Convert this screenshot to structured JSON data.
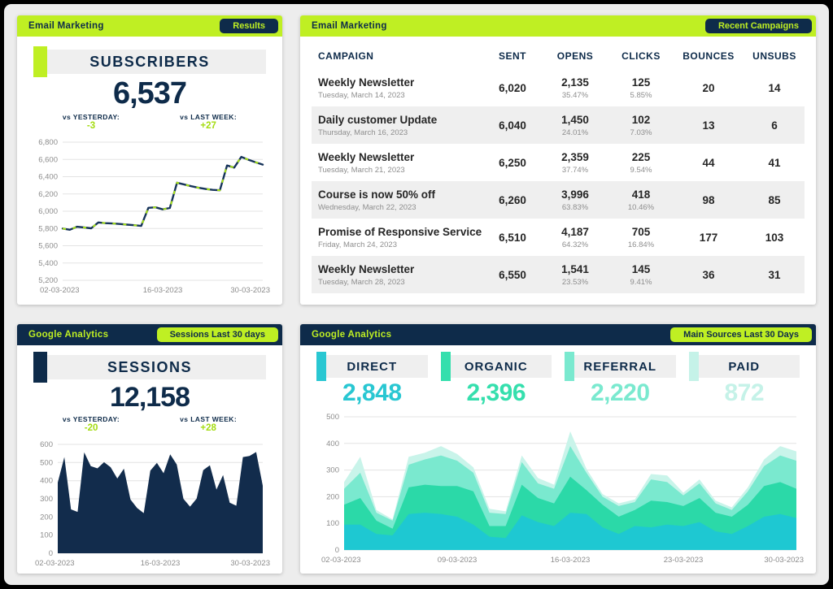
{
  "colors": {
    "lime": "#bfef23",
    "navy": "#0e2b4a",
    "page_bg": "#ededed",
    "banner_bg": "#efefef",
    "muted": "#8c8c8c",
    "compare_green": "#a4dc10"
  },
  "panels": {
    "subscribers": {
      "header": {
        "title": "Email Marketing",
        "badge": "Results"
      },
      "kpi": {
        "label": "SUBSCRIBERS",
        "value": "6,537"
      },
      "compare": {
        "yesterday_label": "vs YESTERDAY:",
        "yesterday_value": "-3",
        "last_week_label": "vs LAST WEEK:",
        "last_week_value": "+27"
      }
    },
    "campaigns": {
      "header": {
        "title": "Email Marketing",
        "badge": "Recent Campaigns"
      },
      "table": {
        "columns": [
          "CAMPAIGN",
          "SENT",
          "OPENS",
          "CLICKS",
          "BOUNCES",
          "UNSUBS"
        ],
        "rows": [
          {
            "name": "Weekly Newsletter",
            "date": "Tuesday, March 14, 2023",
            "sent": "6,020",
            "opens": "2,135",
            "opens_pct": "35.47%",
            "clicks": "125",
            "clicks_pct": "5.85%",
            "bounces": "20",
            "unsubs": "14"
          },
          {
            "name": "Daily customer Update",
            "date": "Thursday, March 16, 2023",
            "sent": "6,040",
            "opens": "1,450",
            "opens_pct": "24.01%",
            "clicks": "102",
            "clicks_pct": "7.03%",
            "bounces": "13",
            "unsubs": "6"
          },
          {
            "name": "Weekly Newsletter",
            "date": "Tuesday, March 21, 2023",
            "sent": "6,250",
            "opens": "2,359",
            "opens_pct": "37.74%",
            "clicks": "225",
            "clicks_pct": "9.54%",
            "bounces": "44",
            "unsubs": "41"
          },
          {
            "name": "Course is now 50% off",
            "date": "Wednesday, March 22, 2023",
            "sent": "6,260",
            "opens": "3,996",
            "opens_pct": "63.83%",
            "clicks": "418",
            "clicks_pct": "10.46%",
            "bounces": "98",
            "unsubs": "85"
          },
          {
            "name": "Promise of Responsive Service",
            "date": "Friday, March 24, 2023",
            "sent": "6,510",
            "opens": "4,187",
            "opens_pct": "64.32%",
            "clicks": "705",
            "clicks_pct": "16.84%",
            "bounces": "177",
            "unsubs": "103"
          },
          {
            "name": "Weekly Newsletter",
            "date": "Tuesday, March 28, 2023",
            "sent": "6,550",
            "opens": "1,541",
            "opens_pct": "23.53%",
            "clicks": "145",
            "clicks_pct": "9.41%",
            "bounces": "36",
            "unsubs": "31"
          }
        ]
      }
    },
    "sessions": {
      "header": {
        "title": "Google Analytics",
        "badge": "Sessions Last 30 days"
      },
      "kpi": {
        "label": "SESSIONS",
        "value": "12,158"
      },
      "compare": {
        "yesterday_label": "vs YESTERDAY:",
        "yesterday_value": "-20",
        "last_week_label": "vs LAST WEEK:",
        "last_week_value": "+28"
      }
    },
    "sources": {
      "header": {
        "title": "Google Analytics",
        "badge": "Main Sources Last 30 Days"
      },
      "kpis": [
        {
          "label": "DIRECT",
          "value": "2,848",
          "color": "#29c7d2"
        },
        {
          "label": "ORGANIC",
          "value": "2,396",
          "color": "#35dfad"
        },
        {
          "label": "REFERRAL",
          "value": "2,220",
          "color": "#7ae9cf"
        },
        {
          "label": "PAID",
          "value": "872",
          "color": "#c5f2e8"
        }
      ]
    }
  },
  "chart_data": [
    {
      "id": "subscribers",
      "type": "line",
      "title": "SUBSCRIBERS",
      "ylim": [
        5200,
        6800
      ],
      "ystep": 200,
      "grid": true,
      "xticks": [
        {
          "p": 0,
          "label": "02-03-2023"
        },
        {
          "p": 0.5,
          "label": "16-03-2023"
        },
        {
          "p": 1,
          "label": "30-03-2023"
        }
      ],
      "values": [
        5800,
        5785,
        5820,
        5812,
        5802,
        5870,
        5862,
        5858,
        5852,
        5845,
        5838,
        5830,
        6040,
        6045,
        6022,
        6038,
        6330,
        6310,
        6290,
        6272,
        6258,
        6248,
        6243,
        6530,
        6505,
        6630,
        6597,
        6568,
        6540
      ],
      "line_color": "#16335a",
      "dash_color": "#a9e614"
    },
    {
      "id": "sessions",
      "type": "area",
      "title": "SESSIONS",
      "ylim": [
        0,
        600
      ],
      "ystep": 100,
      "grid": true,
      "xticks": [
        {
          "p": 0,
          "label": "02-03-2023"
        },
        {
          "p": 0.5,
          "label": "16-03-2023"
        },
        {
          "p": 1,
          "label": "30-03-2023"
        }
      ],
      "values": [
        390,
        530,
        242,
        228,
        556,
        480,
        468,
        502,
        474,
        412,
        466,
        296,
        250,
        221,
        456,
        498,
        441,
        545,
        489,
        300,
        257,
        301,
        458,
        485,
        351,
        431,
        279,
        262,
        530,
        536,
        558,
        372
      ],
      "fill": "#122c4c"
    },
    {
      "id": "sources",
      "type": "stacked_area",
      "title": "Main Sources Last 30 Days",
      "ylim": [
        0,
        500
      ],
      "ystep": 100,
      "grid": true,
      "xticks": [
        {
          "p": 0,
          "label": "02-03-2023"
        },
        {
          "p": 0.25,
          "label": "09-03-2023"
        },
        {
          "p": 0.5,
          "label": "16-03-2023"
        },
        {
          "p": 0.75,
          "label": "23-03-2023"
        },
        {
          "p": 1,
          "label": "30-03-2023"
        }
      ],
      "series": [
        {
          "name": "Direct",
          "color": "#1ec8d2",
          "values": [
            95,
            95,
            60,
            55,
            135,
            140,
            135,
            125,
            95,
            50,
            45,
            130,
            105,
            90,
            140,
            135,
            85,
            60,
            90,
            85,
            95,
            90,
            105,
            70,
            60,
            90,
            125,
            135,
            120
          ]
        },
        {
          "name": "Organic",
          "color": "#2bd9a8",
          "values": [
            75,
            100,
            50,
            25,
            100,
            105,
            105,
            115,
            125,
            40,
            45,
            115,
            90,
            85,
            135,
            90,
            85,
            65,
            60,
            100,
            85,
            75,
            90,
            70,
            65,
            80,
            115,
            120,
            110
          ]
        },
        {
          "name": "Referral",
          "color": "#7ae9cf",
          "values": [
            60,
            95,
            30,
            30,
            85,
            95,
            115,
            95,
            70,
            50,
            45,
            85,
            55,
            55,
            115,
            65,
            30,
            40,
            30,
            80,
            75,
            40,
            55,
            35,
            25,
            50,
            75,
            100,
            105
          ]
        },
        {
          "name": "Paid",
          "color": "#c9f4ea",
          "values": [
            25,
            60,
            10,
            5,
            30,
            25,
            35,
            25,
            20,
            15,
            10,
            25,
            20,
            15,
            55,
            15,
            10,
            10,
            10,
            20,
            25,
            10,
            15,
            10,
            10,
            15,
            25,
            35,
            35
          ]
        }
      ]
    }
  ]
}
